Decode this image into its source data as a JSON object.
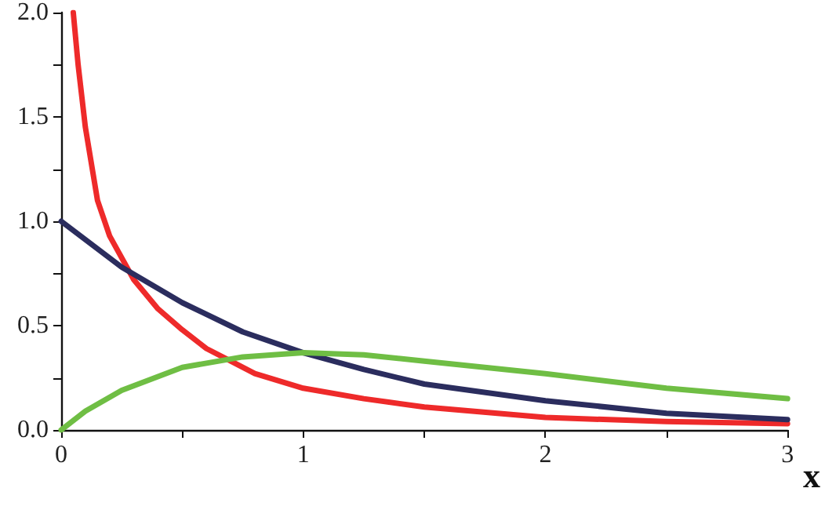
{
  "chart_data": {
    "type": "line",
    "xlabel": "x",
    "xlim": [
      0,
      3
    ],
    "ylim": [
      0,
      2
    ],
    "xticks": [
      0,
      {
        "value": 0.5,
        "label": null
      },
      1,
      {
        "value": 1.5,
        "label": null
      },
      2,
      {
        "value": 2.5,
        "label": null
      },
      3
    ],
    "yticks": [
      {
        "value": 0,
        "label": "0.0"
      },
      {
        "value": 0.25,
        "label": null
      },
      {
        "value": 0.5,
        "label": "0.5"
      },
      {
        "value": 0.75,
        "label": null
      },
      {
        "value": 1,
        "label": "1.0"
      },
      {
        "value": 1.25,
        "label": null
      },
      {
        "value": 1.5,
        "label": "1.5"
      },
      {
        "value": 1.75,
        "label": null
      },
      {
        "value": 2,
        "label": "2.0"
      }
    ],
    "grid": false,
    "marker": "none",
    "line_style": "solid",
    "series": [
      {
        "color": "#ee2a2a",
        "x": [
          0.05,
          0.07,
          0.1,
          0.15,
          0.2,
          0.3,
          0.4,
          0.5,
          0.6,
          0.7,
          0.8,
          1,
          1.25,
          1.5,
          2,
          2.5,
          3
        ],
        "values": [
          2.0,
          1.75,
          1.45,
          1.1,
          0.93,
          0.72,
          0.58,
          0.48,
          0.39,
          0.33,
          0.27,
          0.2,
          0.15,
          0.11,
          0.06,
          0.04,
          0.03
        ]
      },
      {
        "color": "#2b2d5e",
        "x": [
          0,
          0.25,
          0.5,
          0.75,
          1,
          1.25,
          1.5,
          2,
          2.5,
          3
        ],
        "values": [
          1.0,
          0.78,
          0.61,
          0.47,
          0.37,
          0.29,
          0.22,
          0.14,
          0.08,
          0.05
        ]
      },
      {
        "color": "#6fbe44",
        "x": [
          0,
          0.1,
          0.25,
          0.5,
          0.75,
          1,
          1.25,
          1.5,
          2,
          2.5,
          3
        ],
        "values": [
          0.0,
          0.09,
          0.19,
          0.3,
          0.35,
          0.37,
          0.36,
          0.33,
          0.27,
          0.2,
          0.15
        ]
      }
    ]
  }
}
